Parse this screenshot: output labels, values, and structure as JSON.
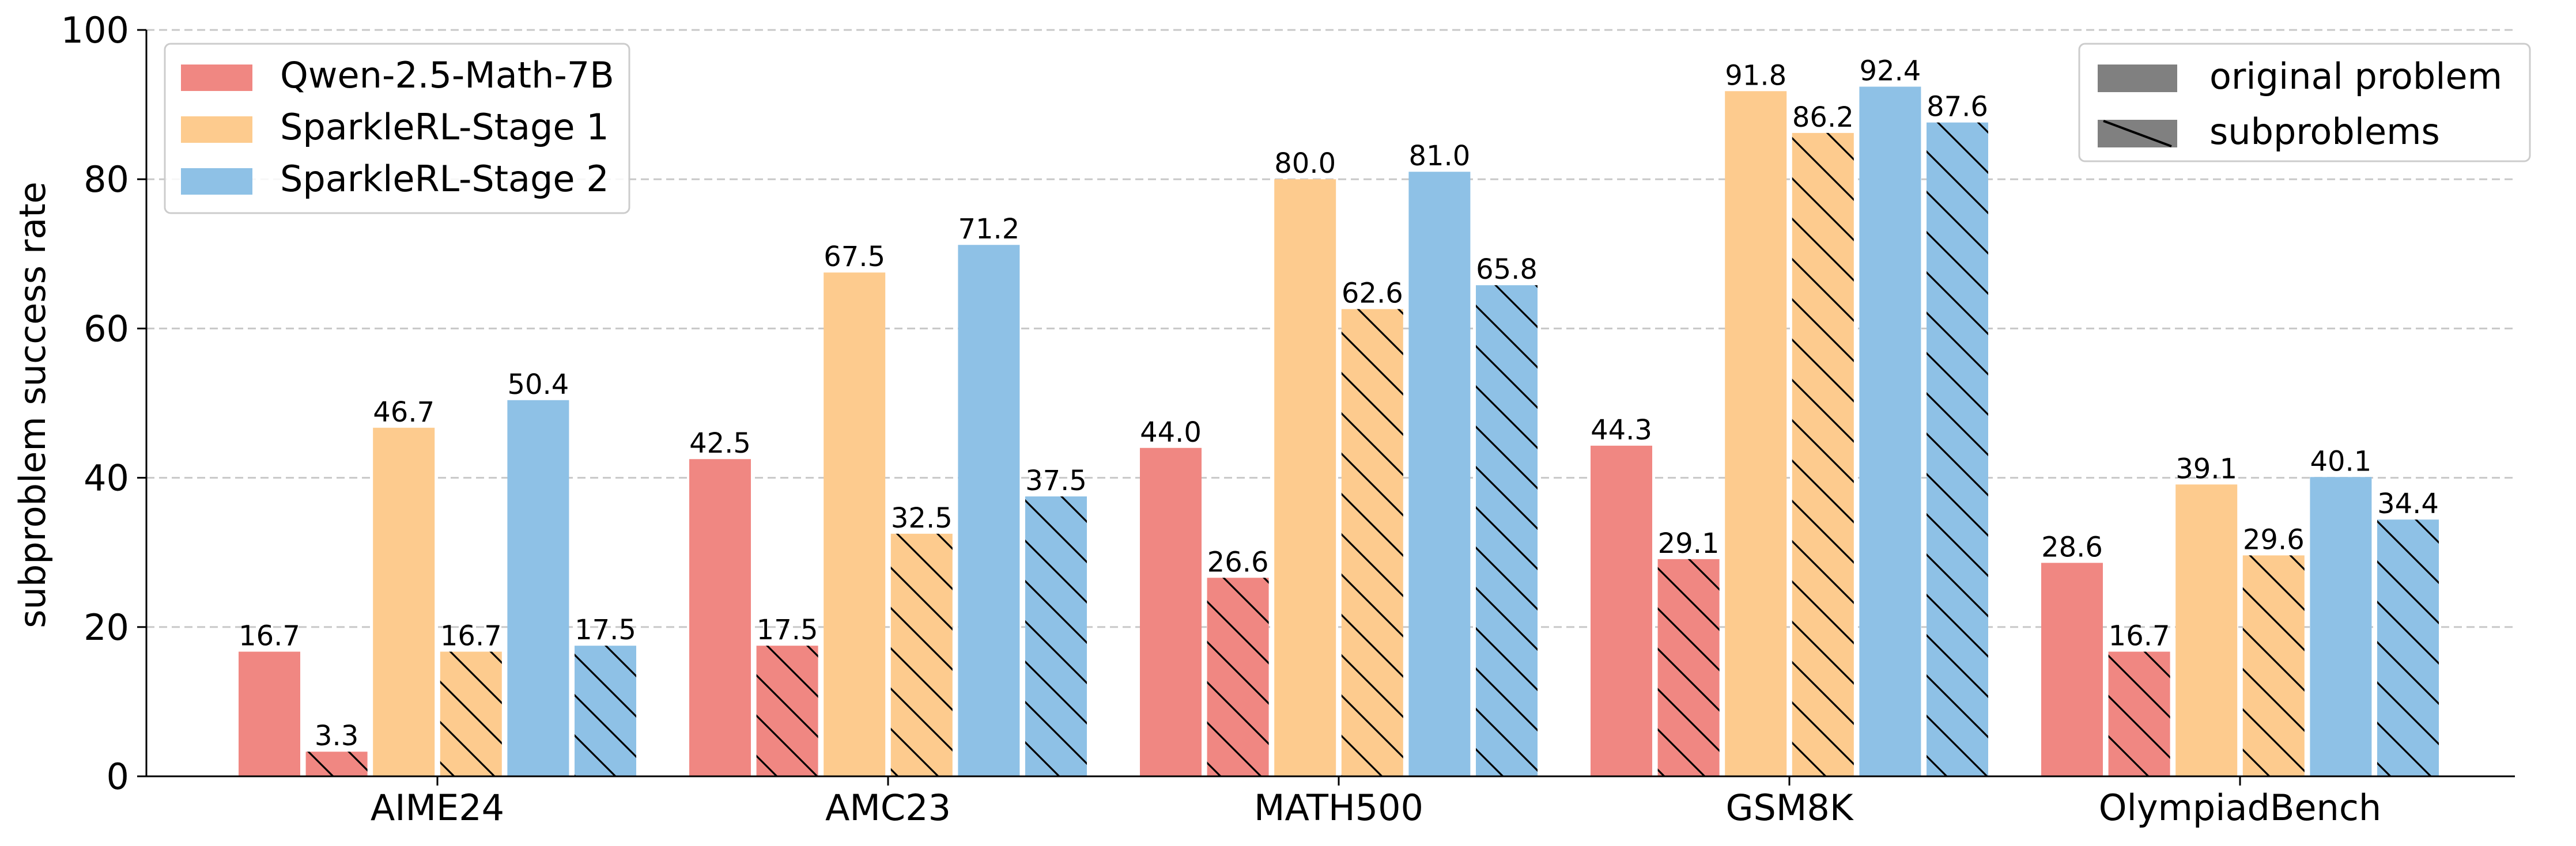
{
  "chart_data": {
    "type": "bar",
    "title": "",
    "xlabel": "",
    "ylabel": "subproblem success rate",
    "ylim": [
      0,
      100
    ],
    "yticks": [
      0,
      20,
      40,
      60,
      80,
      100
    ],
    "grid": "y-dashed",
    "categories": [
      "AIME24",
      "AMC23",
      "MATH500",
      "GSM8K",
      "OlympiadBench"
    ],
    "series": [
      {
        "name": "Qwen-2.5-Math-7B (original problem)",
        "model": "Qwen-2.5-Math-7B",
        "kind": "original problem",
        "color": "#F08782",
        "values": [
          16.7,
          42.5,
          44.0,
          44.3,
          28.6
        ],
        "labels": [
          "16.7",
          "42.5",
          "44.0",
          "44.3",
          "28.6"
        ]
      },
      {
        "name": "Qwen-2.5-Math-7B (subproblems)",
        "model": "Qwen-2.5-Math-7B",
        "kind": "subproblems",
        "color": "#F08782",
        "values": [
          3.3,
          17.5,
          26.6,
          29.1,
          16.7
        ],
        "labels": [
          "3.3",
          "17.5",
          "26.6",
          "29.1",
          "16.7"
        ]
      },
      {
        "name": "SparkleRL-Stage 1 (original problem)",
        "model": "SparkleRL-Stage 1",
        "kind": "original problem",
        "color": "#FDCB8E",
        "values": [
          46.7,
          67.5,
          80.0,
          91.8,
          39.1
        ],
        "labels": [
          "46.7",
          "67.5",
          "80.0",
          "91.8",
          "39.1"
        ]
      },
      {
        "name": "SparkleRL-Stage 1 (subproblems)",
        "model": "SparkleRL-Stage 1",
        "kind": "subproblems",
        "color": "#FDCB8E",
        "values": [
          16.7,
          32.5,
          62.6,
          86.2,
          29.6
        ],
        "labels": [
          "16.7",
          "32.5",
          "62.6",
          "86.2",
          "29.6"
        ]
      },
      {
        "name": "SparkleRL-Stage 2 (original problem)",
        "model": "SparkleRL-Stage 2",
        "kind": "original problem",
        "color": "#8EC1E6",
        "values": [
          50.4,
          71.2,
          81.0,
          92.4,
          40.1
        ],
        "labels": [
          "50.4",
          "71.2",
          "81.0",
          "92.4",
          "40.1"
        ]
      },
      {
        "name": "SparkleRL-Stage 2 (subproblems)",
        "model": "SparkleRL-Stage 2",
        "kind": "subproblems",
        "color": "#8EC1E6",
        "values": [
          17.5,
          37.5,
          65.8,
          87.6,
          34.4
        ],
        "labels": [
          "17.5",
          "37.5",
          "65.8",
          "87.6",
          "34.4"
        ]
      }
    ],
    "legend_models": {
      "placement": "top-left",
      "entries": [
        {
          "label": "Qwen-2.5-Math-7B",
          "color": "#F08782"
        },
        {
          "label": "SparkleRL-Stage 1",
          "color": "#FDCB8E"
        },
        {
          "label": "SparkleRL-Stage 2",
          "color": "#8EC1E6"
        }
      ]
    },
    "legend_kinds": {
      "placement": "top-right",
      "entries": [
        {
          "label": "original problem",
          "color": "#808080",
          "hatched": false
        },
        {
          "label": "subproblems",
          "color": "#808080",
          "hatched": true
        }
      ]
    }
  }
}
